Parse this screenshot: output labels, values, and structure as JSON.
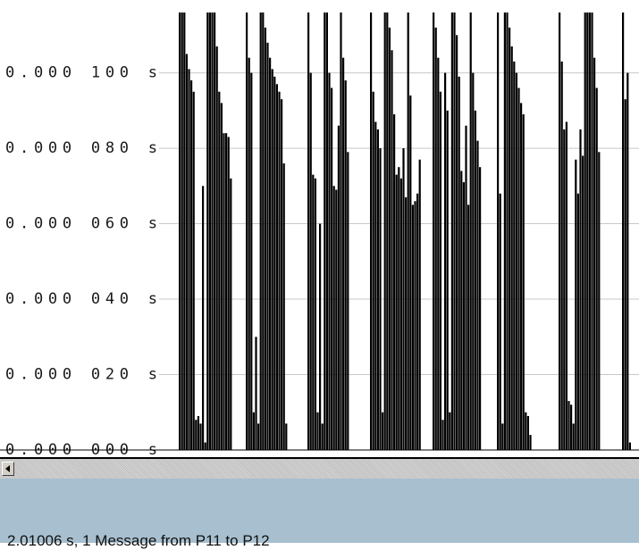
{
  "status": {
    "message": "2.01006 s, 1 Message from P11 to P12"
  },
  "colors": {
    "bar": "#000000",
    "grid": "#c8c8c8",
    "axis_text": "#1a1a1a",
    "status_bg": "#a7bfcf"
  },
  "chart_data": {
    "type": "bar",
    "ylim": [
      0,
      0.000116
    ],
    "y_ticks": [
      {
        "value": 0.0,
        "label": "0.000 000 s"
      },
      {
        "value": 2e-05,
        "label": "0.000 020 s"
      },
      {
        "value": 4e-05,
        "label": "0.000 040 s"
      },
      {
        "value": 6e-05,
        "label": "0.000 060 s"
      },
      {
        "value": 8e-05,
        "label": "0.000 080 s"
      },
      {
        "value": 0.0001,
        "label": "0.000 100 s"
      }
    ],
    "grid": true,
    "groups": [
      {
        "values": [
          0.000116,
          0.000116,
          0.000116,
          0.000105,
          0.000101,
          9.8e-05,
          9.5e-05,
          8e-06,
          9e-06,
          7e-06,
          7e-05,
          2e-06,
          0.000116,
          0.000116,
          0.000116,
          0.000116,
          0.000107,
          9.5e-05,
          9.2e-05,
          8.4e-05,
          8.4e-05,
          8.3e-05,
          7.2e-05
        ]
      },
      {
        "values": [
          0.000116,
          0.000104,
          0.0001,
          1e-05,
          3e-05,
          7e-06,
          0.000116,
          0.000116,
          0.000112,
          0.000108,
          0.000104,
          0.000101,
          9.9e-05,
          9.7e-05,
          9.5e-05,
          9.3e-05,
          7.6e-05,
          7e-06
        ]
      },
      {
        "values": [
          0.000116,
          0.0001,
          7.3e-05,
          7.2e-05,
          1e-05,
          6e-05,
          7e-06,
          0.000116,
          0.000116,
          0.0001,
          9.6e-05,
          7e-05,
          6.9e-05,
          8.6e-05,
          0.000116,
          0.000104,
          9.8e-05,
          7.9e-05
        ]
      },
      {
        "values": [
          0.000116,
          9.5e-05,
          8.7e-05,
          8.5e-05,
          8e-05,
          1e-05,
          0.000116,
          0.000116,
          0.000112,
          0.000106,
          8.9e-05,
          7.3e-05,
          7.5e-05,
          7.2e-05,
          8e-05,
          6.7e-05,
          0.000116,
          9.4e-05,
          6.5e-05,
          6.6e-05,
          6.8e-05,
          7.7e-05
        ]
      },
      {
        "values": [
          0.000116,
          0.000112,
          0.000104,
          9.5e-05,
          8e-06,
          0.0001,
          9e-05,
          1e-05,
          0.000116,
          0.000116,
          0.00011,
          9.9e-05,
          7.4e-05,
          7.1e-05,
          8.6e-05,
          6.5e-05,
          0.000116,
          0.0001,
          9e-05,
          8.2e-05,
          7.5e-05
        ]
      },
      {
        "values": [
          0.000116,
          6.8e-05,
          7e-06,
          0.000116,
          0.000116,
          0.000112,
          0.000107,
          0.000103,
          0.0001,
          9.6e-05,
          9.2e-05,
          8.9e-05,
          1e-05,
          9e-06,
          4e-06
        ]
      },
      {
        "values": [
          0.000116,
          0.000103,
          8.5e-05,
          8.7e-05,
          1.3e-05,
          1.2e-05,
          7e-06,
          7.7e-05,
          6.8e-05,
          8.5e-05,
          7.8e-05,
          0.000116,
          0.000116,
          0.000116,
          0.000116,
          0.000104,
          9.6e-05,
          7.9e-05
        ]
      },
      {
        "values": [
          0.000116,
          9.3e-05,
          0.0001,
          2e-06
        ]
      }
    ]
  }
}
